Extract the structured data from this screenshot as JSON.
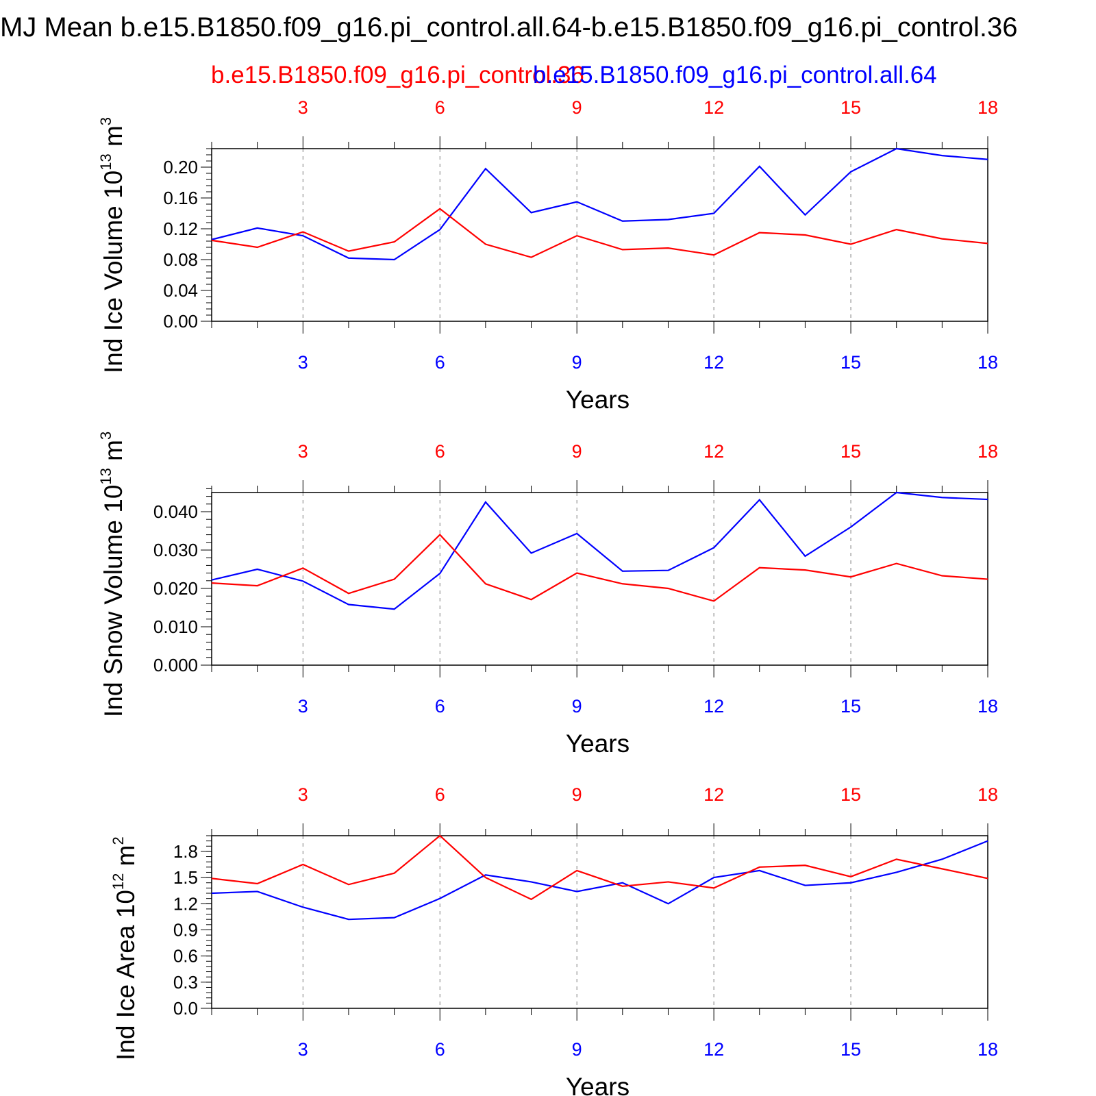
{
  "title": "MJ Mean b.e15.B1850.f09_g16.pi_control.all.64-b.e15.B1850.f09_g16.pi_control.36",
  "subtitle_left": "b.e15.B1850.f09_g16.pi_control.36",
  "subtitle_right": "b.e15.B1850.f09_g16.pi_control.all.64",
  "colors": {
    "red": "#ff0000",
    "blue": "#0000ff",
    "axis": "#000000",
    "grid": "#808080"
  },
  "chart_data": [
    {
      "type": "line",
      "ylabel": "Ind Ice Volume 10",
      "ylabel_exp": "13",
      "ylabel_unit": " m",
      "ylabel_unit_exp": "3",
      "xlabel": "Years",
      "xlim": [
        1,
        18
      ],
      "ylim": [
        0,
        0.224
      ],
      "yticks": [
        "0.00",
        "0.04",
        "0.08",
        "0.12",
        "0.16",
        "0.20"
      ],
      "ytick_values": [
        0,
        0.04,
        0.08,
        0.12,
        0.16,
        0.2
      ],
      "yminor": 0.008,
      "xticks": [
        "3",
        "6",
        "9",
        "12",
        "15",
        "18"
      ],
      "xtick_values": [
        3,
        6,
        9,
        12,
        15,
        18
      ],
      "x": [
        1,
        2,
        3,
        4,
        5,
        6,
        7,
        8,
        9,
        10,
        11,
        12,
        13,
        14,
        15,
        16,
        17,
        18
      ],
      "series": [
        {
          "color": "#0000ff",
          "values": [
            0.106,
            0.121,
            0.111,
            0.082,
            0.08,
            0.119,
            0.198,
            0.141,
            0.155,
            0.13,
            0.132,
            0.14,
            0.201,
            0.138,
            0.194,
            0.224,
            0.215,
            0.21
          ]
        },
        {
          "color": "#ff0000",
          "values": [
            0.105,
            0.096,
            0.116,
            0.091,
            0.103,
            0.146,
            0.1,
            0.083,
            0.111,
            0.093,
            0.095,
            0.086,
            0.115,
            0.112,
            0.1,
            0.119,
            0.107,
            0.101
          ]
        }
      ]
    },
    {
      "type": "line",
      "ylabel": "Ind Snow Volume 10",
      "ylabel_exp": "13",
      "ylabel_unit": " m",
      "ylabel_unit_exp": "3",
      "xlabel": "Years",
      "xlim": [
        1,
        18
      ],
      "ylim": [
        0,
        0.045
      ],
      "yticks": [
        "0.000",
        "0.010",
        "0.020",
        "0.030",
        "0.040"
      ],
      "ytick_values": [
        0,
        0.01,
        0.02,
        0.03,
        0.04
      ],
      "yminor": 0.002,
      "xticks": [
        "3",
        "6",
        "9",
        "12",
        "15",
        "18"
      ],
      "xtick_values": [
        3,
        6,
        9,
        12,
        15,
        18
      ],
      "x": [
        1,
        2,
        3,
        4,
        5,
        6,
        7,
        8,
        9,
        10,
        11,
        12,
        13,
        14,
        15,
        16,
        17,
        18
      ],
      "series": [
        {
          "color": "#0000ff",
          "values": [
            0.0222,
            0.025,
            0.0219,
            0.0158,
            0.0146,
            0.0239,
            0.0425,
            0.0292,
            0.0343,
            0.0245,
            0.0247,
            0.0306,
            0.0431,
            0.0284,
            0.036,
            0.045,
            0.0437,
            0.0432
          ]
        },
        {
          "color": "#ff0000",
          "values": [
            0.0214,
            0.0207,
            0.0253,
            0.0187,
            0.0224,
            0.034,
            0.0212,
            0.0171,
            0.024,
            0.0212,
            0.02,
            0.0167,
            0.0254,
            0.0248,
            0.023,
            0.0265,
            0.0233,
            0.0224
          ]
        }
      ]
    },
    {
      "type": "line",
      "ylabel": "Ind Ice Area 10",
      "ylabel_exp": "12",
      "ylabel_unit": " m",
      "ylabel_unit_exp": "2",
      "xlabel": "Years",
      "xlim": [
        1,
        18
      ],
      "ylim": [
        0,
        1.98
      ],
      "yticks": [
        "0.0",
        "0.3",
        "0.6",
        "0.9",
        "1.2",
        "1.5",
        "1.8"
      ],
      "ytick_values": [
        0,
        0.3,
        0.6,
        0.9,
        1.2,
        1.5,
        1.8
      ],
      "yminor": 0.06,
      "xticks": [
        "3",
        "6",
        "9",
        "12",
        "15",
        "18"
      ],
      "xtick_values": [
        3,
        6,
        9,
        12,
        15,
        18
      ],
      "x": [
        1,
        2,
        3,
        4,
        5,
        6,
        7,
        8,
        9,
        10,
        11,
        12,
        13,
        14,
        15,
        16,
        17,
        18
      ],
      "series": [
        {
          "color": "#0000ff",
          "values": [
            1.32,
            1.34,
            1.16,
            1.02,
            1.04,
            1.26,
            1.53,
            1.45,
            1.34,
            1.44,
            1.2,
            1.5,
            1.58,
            1.41,
            1.44,
            1.56,
            1.71,
            1.92
          ]
        },
        {
          "color": "#ff0000",
          "values": [
            1.49,
            1.43,
            1.65,
            1.42,
            1.55,
            1.98,
            1.5,
            1.25,
            1.58,
            1.4,
            1.45,
            1.38,
            1.62,
            1.64,
            1.51,
            1.71,
            1.6,
            1.49
          ]
        }
      ]
    }
  ]
}
